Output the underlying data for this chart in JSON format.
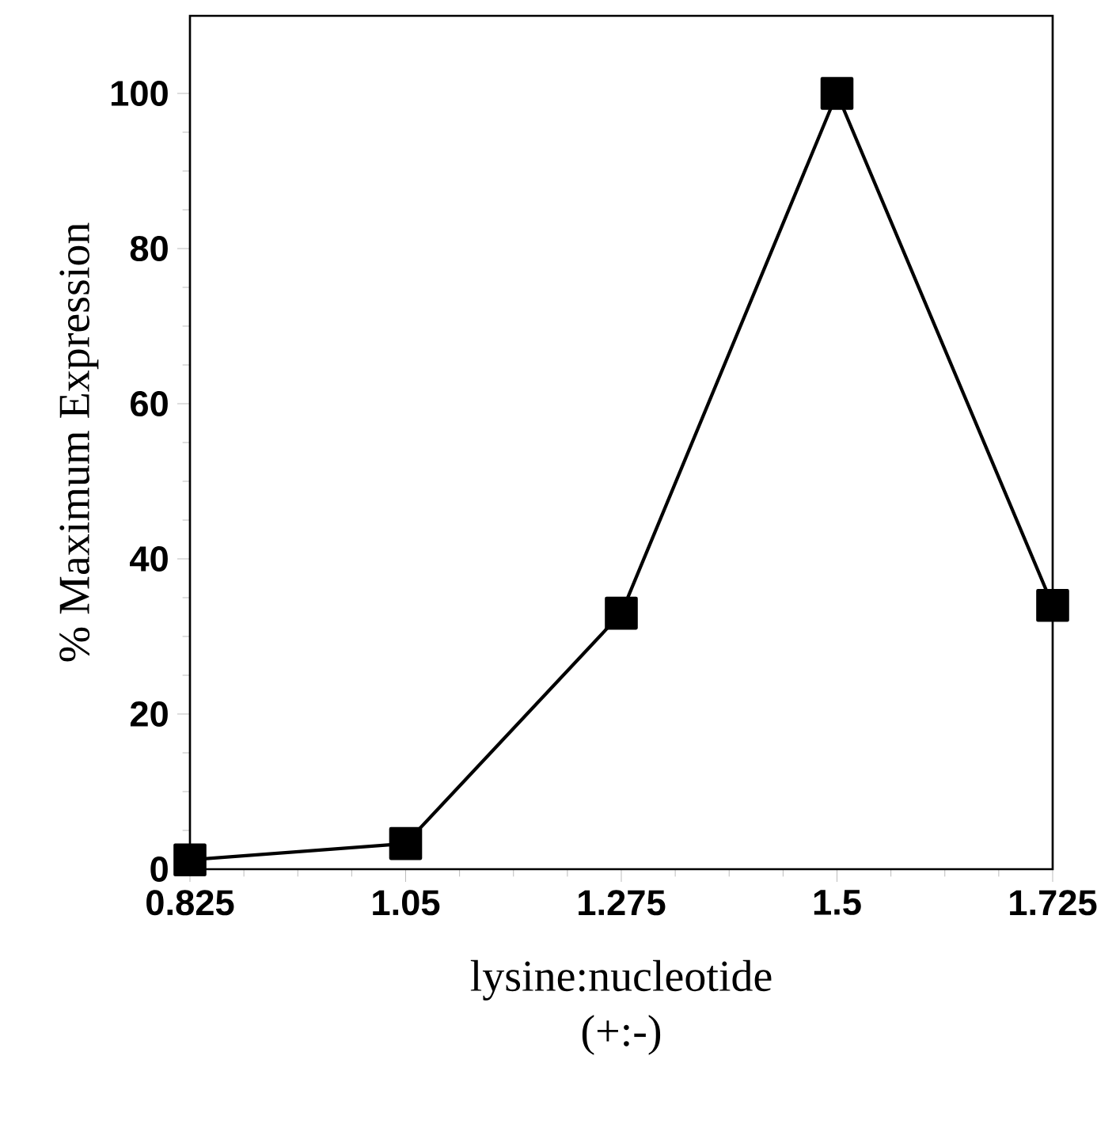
{
  "chart_data": {
    "type": "line",
    "xlabel": "lysine:nucleotide (+:-)",
    "ylabel": "% Maximum Expression",
    "x": [
      0.825,
      1.05,
      1.275,
      1.5,
      1.725
    ],
    "series": [
      {
        "color": "#000000",
        "values": [
          1.2,
          3.3,
          33,
          100,
          34
        ]
      }
    ],
    "xlim": [
      0.825,
      1.725
    ],
    "ylim": [
      0,
      110
    ],
    "xticks": [
      0.825,
      1.05,
      1.275,
      1.5,
      1.725
    ],
    "yticks": [
      0,
      20,
      40,
      60,
      80,
      100
    ],
    "marker": "square",
    "line_style": "solid",
    "grid": false
  }
}
